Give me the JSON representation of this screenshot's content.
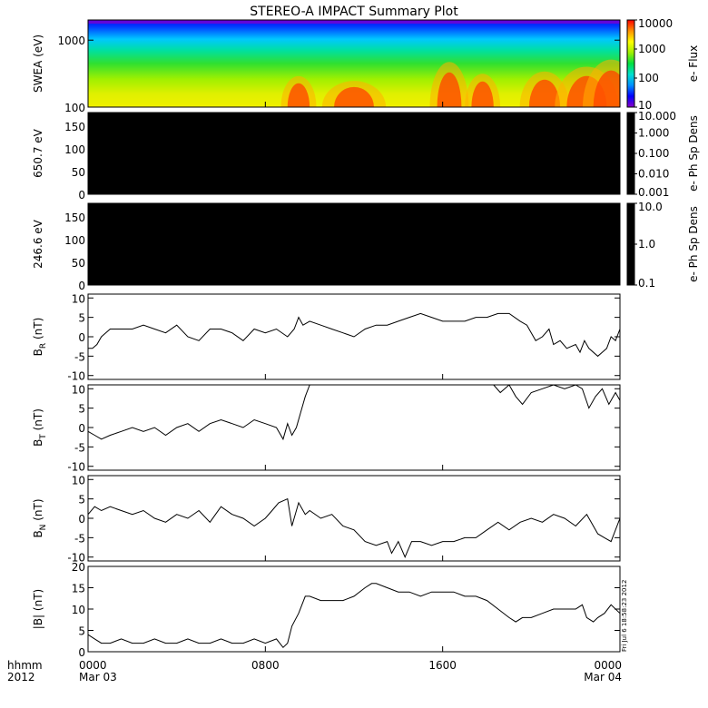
{
  "title": "STEREO-A IMPACT Summary Plot",
  "stamp": "Fri Jul  6 18:58:23 2012",
  "x_axis": {
    "row_label": "hhmm",
    "year": "2012",
    "ticks": [
      {
        "t": 0,
        "time": "0000",
        "date": "Mar 03"
      },
      {
        "t": 8,
        "time": "0800",
        "date": ""
      },
      {
        "t": 16,
        "time": "1600",
        "date": ""
      },
      {
        "t": 24,
        "time": "0000",
        "date": "Mar 04"
      }
    ],
    "range_hours": [
      0,
      24
    ]
  },
  "colors": {
    "line": "#000000",
    "frame": "#000000",
    "spectrogram_top": "#0000ff"
  },
  "chart_data": [
    {
      "type": "heatmap",
      "name": "swea",
      "ylabel": "SWEA (eV)",
      "yscale": "log",
      "ylim": [
        100,
        2000
      ],
      "yticks": [
        {
          "v": 100,
          "label": "100"
        },
        {
          "v": 1000,
          "label": "1000"
        }
      ],
      "colorbar": {
        "label": "e- Flux",
        "scale": "log",
        "range": [
          10,
          10000
        ],
        "ticks": [
          {
            "v": 10,
            "label": "10"
          },
          {
            "v": 100,
            "label": "100"
          },
          {
            "v": 1000,
            "label": "1000"
          },
          {
            "v": 10000,
            "label": "10000"
          }
        ],
        "colors": [
          "#8a00c8",
          "#0000ff",
          "#0090ff",
          "#00e0d0",
          "#00e040",
          "#a0f000",
          "#ffff00",
          "#ff9000",
          "#ff0000"
        ]
      },
      "hot_spots": [
        {
          "t": 9.5,
          "level": 0.65,
          "width": 0.5
        },
        {
          "t": 12.0,
          "level": 0.55,
          "width": 0.9
        },
        {
          "t": 16.3,
          "level": 0.95,
          "width": 0.55
        },
        {
          "t": 17.8,
          "level": 0.7,
          "width": 0.5
        },
        {
          "t": 20.6,
          "level": 0.75,
          "width": 0.7
        },
        {
          "t": 22.5,
          "level": 0.85,
          "width": 0.9
        },
        {
          "t": 23.6,
          "level": 1.0,
          "width": 0.8
        }
      ]
    },
    {
      "type": "heatmap",
      "name": "pad650",
      "ylabel": "650.7 eV",
      "ylim": [
        0,
        180
      ],
      "yticks": [
        {
          "v": 0,
          "label": "0"
        },
        {
          "v": 50,
          "label": "50"
        },
        {
          "v": 100,
          "label": "100"
        },
        {
          "v": 150,
          "label": "150"
        }
      ],
      "fill": "#000000",
      "colorbar": {
        "label": "e- Ph Sp Dens",
        "scale": "log",
        "range": [
          0.001,
          10
        ],
        "ticks": [
          {
            "v": 0.001,
            "label": "0.001"
          },
          {
            "v": 0.01,
            "label": "0.010"
          },
          {
            "v": 0.1,
            "label": "0.100"
          },
          {
            "v": 1,
            "label": "1.000"
          },
          {
            "v": 10,
            "label": "10.000"
          }
        ]
      }
    },
    {
      "type": "heatmap",
      "name": "pad246",
      "ylabel": "246.6 eV",
      "ylim": [
        0,
        180
      ],
      "yticks": [
        {
          "v": 0,
          "label": "0"
        },
        {
          "v": 50,
          "label": "50"
        },
        {
          "v": 100,
          "label": "100"
        },
        {
          "v": 150,
          "label": "150"
        }
      ],
      "fill": "#000000",
      "colorbar": {
        "label": "e- Ph Sp Dens",
        "scale": "log",
        "range": [
          0.1,
          10
        ],
        "ticks": [
          {
            "v": 0.1,
            "label": "0.1"
          },
          {
            "v": 1,
            "label": "1.0"
          },
          {
            "v": 10,
            "label": "10.0"
          }
        ]
      }
    },
    {
      "type": "line",
      "name": "br",
      "ylabel_base": "B",
      "ylabel_sub": "R",
      "ylabel_tail": " (nT)",
      "ylim": [
        -11,
        11
      ],
      "yticks": [
        {
          "v": -10,
          "label": "-10"
        },
        {
          "v": -5,
          "label": "-5"
        },
        {
          "v": 0,
          "label": "0"
        },
        {
          "v": 5,
          "label": "5"
        },
        {
          "v": 10,
          "label": "10"
        }
      ],
      "x": [
        0,
        0.2,
        0.4,
        0.6,
        0.8,
        1.0,
        1.5,
        2.0,
        2.5,
        3.0,
        3.5,
        4.0,
        4.5,
        5.0,
        5.5,
        6.0,
        6.5,
        7.0,
        7.5,
        8.0,
        8.5,
        9.0,
        9.3,
        9.5,
        9.7,
        10.0,
        10.5,
        11.0,
        11.5,
        12.0,
        12.5,
        13.0,
        13.5,
        14.0,
        14.5,
        15.0,
        15.5,
        16.0,
        16.5,
        17.0,
        17.5,
        18.0,
        18.5,
        19.0,
        19.5,
        19.8,
        20.0,
        20.2,
        20.5,
        20.8,
        21.0,
        21.3,
        21.6,
        22.0,
        22.2,
        22.4,
        22.6,
        23.0,
        23.2,
        23.4,
        23.6,
        23.8,
        24.0
      ],
      "y": [
        -3,
        -3,
        -2,
        0,
        1,
        2,
        2,
        2,
        3,
        2,
        1,
        3,
        0,
        -1,
        2,
        2,
        1,
        -1,
        2,
        1,
        2,
        0,
        2,
        5,
        3,
        4,
        3,
        2,
        1,
        0,
        2,
        3,
        3,
        4,
        5,
        6,
        5,
        4,
        4,
        4,
        5,
        5,
        6,
        6,
        4,
        3,
        1,
        -1,
        0,
        2,
        -2,
        -1,
        -3,
        -2,
        -4,
        -1,
        -3,
        -5,
        -4,
        -3,
        0,
        -1,
        2
      ]
    },
    {
      "type": "line",
      "name": "bt",
      "ylabel_base": "B",
      "ylabel_sub": "T",
      "ylabel_tail": " (nT)",
      "ylim": [
        -11,
        11
      ],
      "yticks": [
        {
          "v": -10,
          "label": "-10"
        },
        {
          "v": -5,
          "label": "-5"
        },
        {
          "v": 0,
          "label": "0"
        },
        {
          "v": 5,
          "label": "5"
        },
        {
          "v": 10,
          "label": "10"
        }
      ],
      "x": [
        0,
        0.3,
        0.6,
        1.0,
        1.5,
        2.0,
        2.5,
        3.0,
        3.5,
        4.0,
        4.5,
        5.0,
        5.5,
        6.0,
        6.5,
        7.0,
        7.5,
        8.0,
        8.5,
        8.8,
        9.0,
        9.2,
        9.4,
        9.6,
        9.8,
        10.0,
        10.5,
        11.0,
        11.5,
        12.0,
        13.0,
        14.0,
        15.0,
        16.0,
        17.0,
        18.0,
        18.3,
        18.6,
        19.0,
        19.3,
        19.6,
        20.0,
        20.5,
        21.0,
        21.5,
        22.0,
        22.3,
        22.6,
        22.9,
        23.2,
        23.5,
        23.8,
        24.0
      ],
      "y": [
        -1,
        -2,
        -3,
        -2,
        -1,
        0,
        -1,
        0,
        -2,
        0,
        1,
        -1,
        1,
        2,
        1,
        0,
        2,
        1,
        0,
        -3,
        1,
        -2,
        0,
        4,
        8,
        12,
        12,
        12,
        12,
        12,
        12,
        12,
        12,
        12,
        12,
        12,
        11,
        9,
        11,
        8,
        6,
        9,
        10,
        11,
        10,
        11,
        10,
        5,
        8,
        10,
        6,
        9,
        7
      ]
    },
    {
      "type": "line",
      "name": "bn",
      "ylabel_base": "B",
      "ylabel_sub": "N",
      "ylabel_tail": " (nT)",
      "ylim": [
        -11,
        11
      ],
      "yticks": [
        {
          "v": -10,
          "label": "-10"
        },
        {
          "v": -5,
          "label": "-5"
        },
        {
          "v": 0,
          "label": "0"
        },
        {
          "v": 5,
          "label": "5"
        },
        {
          "v": 10,
          "label": "10"
        }
      ],
      "x": [
        0,
        0.3,
        0.6,
        1.0,
        1.5,
        2.0,
        2.5,
        3.0,
        3.5,
        4.0,
        4.5,
        5.0,
        5.5,
        6.0,
        6.5,
        7.0,
        7.5,
        8.0,
        8.3,
        8.6,
        9.0,
        9.2,
        9.5,
        9.8,
        10.0,
        10.5,
        11.0,
        11.5,
        12.0,
        12.5,
        13.0,
        13.5,
        13.7,
        14.0,
        14.3,
        14.6,
        15.0,
        15.5,
        16.0,
        16.5,
        17.0,
        17.5,
        18.0,
        18.5,
        19.0,
        19.5,
        20.0,
        20.5,
        21.0,
        21.5,
        22.0,
        22.5,
        23.0,
        23.3,
        23.6,
        24.0
      ],
      "y": [
        1,
        3,
        2,
        3,
        2,
        1,
        2,
        0,
        -1,
        1,
        0,
        2,
        -1,
        3,
        1,
        0,
        -2,
        0,
        2,
        4,
        5,
        -2,
        4,
        1,
        2,
        0,
        1,
        -2,
        -3,
        -6,
        -7,
        -6,
        -9,
        -6,
        -10,
        -6,
        -6,
        -7,
        -6,
        -6,
        -5,
        -5,
        -3,
        -1,
        -3,
        -1,
        0,
        -1,
        1,
        0,
        -2,
        1,
        -4,
        -5,
        -6,
        0
      ]
    },
    {
      "type": "line",
      "name": "bmag",
      "ylabel_base": "|B| (nT)",
      "ylabel_sub": "",
      "ylabel_tail": "",
      "ylim": [
        0,
        20
      ],
      "yticks": [
        {
          "v": 0,
          "label": "0"
        },
        {
          "v": 5,
          "label": "5"
        },
        {
          "v": 10,
          "label": "10"
        },
        {
          "v": 15,
          "label": "15"
        },
        {
          "v": 20,
          "label": "20"
        }
      ],
      "x": [
        0,
        0.3,
        0.6,
        1.0,
        1.5,
        2.0,
        2.5,
        3.0,
        3.5,
        4.0,
        4.5,
        5.0,
        5.5,
        6.0,
        6.5,
        7.0,
        7.5,
        8.0,
        8.5,
        8.8,
        9.0,
        9.2,
        9.5,
        9.8,
        10.0,
        10.5,
        11.0,
        11.5,
        12.0,
        12.5,
        12.8,
        13.0,
        13.5,
        14.0,
        14.5,
        15.0,
        15.5,
        16.0,
        16.5,
        17.0,
        17.5,
        18.0,
        18.5,
        19.0,
        19.3,
        19.6,
        20.0,
        20.5,
        21.0,
        21.5,
        22.0,
        22.3,
        22.5,
        22.8,
        23.0,
        23.3,
        23.6,
        24.0
      ],
      "y": [
        4,
        3,
        2,
        2,
        3,
        2,
        2,
        3,
        2,
        2,
        3,
        2,
        2,
        3,
        2,
        2,
        3,
        2,
        3,
        1,
        2,
        6,
        9,
        13,
        13,
        12,
        12,
        12,
        13,
        15,
        16,
        16,
        15,
        14,
        14,
        13,
        14,
        14,
        14,
        13,
        13,
        12,
        10,
        8,
        7,
        8,
        8,
        9,
        10,
        10,
        10,
        11,
        8,
        7,
        8,
        9,
        11,
        9
      ]
    }
  ]
}
